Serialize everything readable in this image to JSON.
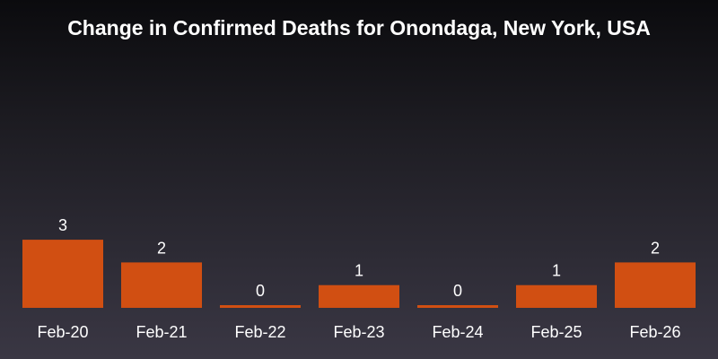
{
  "title": "Change in Confirmed Deaths for Onondaga, New York, USA",
  "colors": {
    "bar": "#d14f12",
    "text": "#ffffff",
    "background_top": "#0b0b0e",
    "background_bottom": "#3a3744"
  },
  "chart_data": {
    "type": "bar",
    "title": "Change in Confirmed Deaths for Onondaga, New York, USA",
    "categories": [
      "Feb-20",
      "Feb-21",
      "Feb-22",
      "Feb-23",
      "Feb-24",
      "Feb-25",
      "Feb-26"
    ],
    "values": [
      3,
      2,
      0,
      1,
      0,
      1,
      2
    ],
    "data_labels": [
      "3",
      "2",
      "0",
      "1",
      "0",
      "1",
      "2"
    ],
    "xlabel": "",
    "ylabel": "",
    "grid": false,
    "legend": "none"
  }
}
